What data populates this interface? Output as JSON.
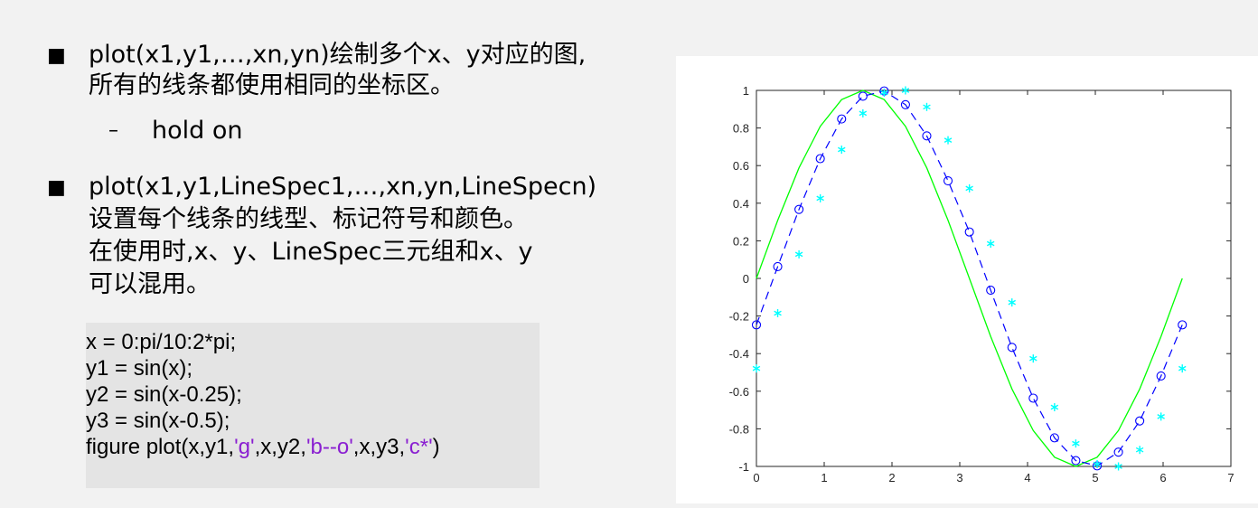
{
  "bullets": [
    {
      "marker": "■",
      "lines": [
        "plot(x1,y1,…,xn,yn)绘制多个x、y对应的图,",
        "所有的线条都使用相同的坐标区。"
      ],
      "sub": {
        "marker": "–",
        "text": "hold on"
      }
    },
    {
      "marker": "■",
      "lines": [
        "plot(x1,y1,LineSpec1,…,xn,yn,LineSpecn)",
        "设置每个线条的线型、标记符号和颜色。",
        "在使用时,x、y、LineSpec三元组和x、y",
        "可以混用。"
      ]
    }
  ],
  "code": {
    "line1": "x = 0:pi/10:2*pi;",
    "line2": "y1 = sin(x);",
    "line3": "y2 = sin(x-0.25);",
    "line4": "y3 = sin(x-0.5);",
    "line5": {
      "p1": "figure plot(x,y1,",
      "s1": "'g'",
      "p2": ",x,y2,",
      "s2": "'b--o'",
      "p3": ",x,y3,",
      "s3": "'c*'",
      "p4": ")"
    }
  },
  "colors": {
    "string_literal": "#8a1fd1",
    "series1": "#00ff00",
    "series2": "#0000ff",
    "series3": "#00ffff"
  },
  "chart_data": {
    "type": "line",
    "title": "",
    "xlabel": "",
    "ylabel": "",
    "xlim": [
      0,
      7
    ],
    "ylim": [
      -1,
      1
    ],
    "xticks": [
      "0",
      "1",
      "2",
      "3",
      "4",
      "5",
      "6",
      "7"
    ],
    "yticks": [
      "-1",
      "-0.8",
      "-0.6",
      "-0.4",
      "-0.2",
      "0",
      "0.2",
      "0.4",
      "0.6",
      "0.8",
      "1"
    ],
    "x": [
      0,
      0.314,
      0.628,
      0.942,
      1.257,
      1.571,
      1.885,
      2.199,
      2.513,
      2.827,
      3.142,
      3.456,
      3.77,
      4.084,
      4.398,
      4.712,
      5.027,
      5.341,
      5.655,
      5.969,
      6.283
    ],
    "series": [
      {
        "style": "green solid line",
        "color": "#00ff00",
        "values": [
          0,
          0.309,
          0.588,
          0.809,
          0.951,
          1.0,
          0.951,
          0.809,
          0.588,
          0.309,
          0,
          -0.309,
          -0.588,
          -0.809,
          -0.951,
          -1.0,
          -0.951,
          -0.809,
          -0.588,
          -0.309,
          0
        ]
      },
      {
        "style": "blue dashed line with circle markers",
        "color": "#0000ff",
        "values": [
          -0.247,
          0.063,
          0.367,
          0.637,
          0.848,
          0.969,
          0.997,
          0.924,
          0.758,
          0.519,
          0.247,
          -0.063,
          -0.367,
          -0.637,
          -0.848,
          -0.969,
          -0.997,
          -0.924,
          -0.758,
          -0.519,
          -0.247
        ]
      },
      {
        "style": "cyan asterisk markers",
        "color": "#00ffff",
        "values": [
          -0.479,
          -0.185,
          0.128,
          0.426,
          0.685,
          0.878,
          0.988,
          1.0,
          0.912,
          0.735,
          0.479,
          0.185,
          -0.128,
          -0.426,
          -0.685,
          -0.878,
          -0.988,
          -1.0,
          -0.912,
          -0.735,
          -0.479
        ]
      }
    ]
  }
}
